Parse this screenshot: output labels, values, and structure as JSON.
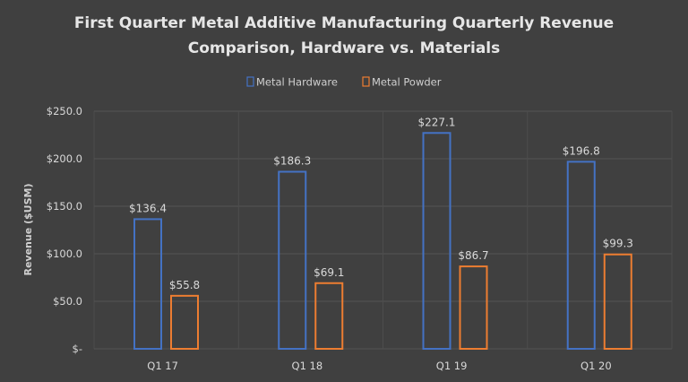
{
  "chart_data": {
    "type": "bar",
    "title": "First Quarter Metal Additive Manufacturing Quarterly Revenue Comparison, Hardware vs. Materials",
    "title_lines": [
      "First Quarter Metal Additive Manufacturing Quarterly Revenue",
      "Comparison, Hardware vs. Materials"
    ],
    "xlabel": "",
    "ylabel": "Revenue ($USM)",
    "categories": [
      "Q1 17",
      "Q1 18",
      "Q1 19",
      "Q1 20"
    ],
    "series": [
      {
        "name": "Metal Hardware",
        "values": [
          136.4,
          186.3,
          227.1,
          196.8
        ],
        "labels": [
          "$136.4",
          "$186.3",
          "$227.1",
          "$196.8"
        ],
        "color": "#4472c4"
      },
      {
        "name": "Metal Powder",
        "values": [
          55.8,
          69.1,
          86.7,
          99.3
        ],
        "labels": [
          "$55.8",
          "$69.1",
          "$86.7",
          "$99.3"
        ],
        "color": "#ed7d31"
      }
    ],
    "ylim": [
      0,
      250
    ],
    "yticks": [
      0,
      50,
      100,
      150,
      200,
      250
    ],
    "ytick_labels": [
      "$-",
      "$50.0",
      "$100.0",
      "$150.0",
      "$200.0",
      "$250.0"
    ],
    "grid": true,
    "legend_position": "top",
    "bar_style": "outline"
  }
}
